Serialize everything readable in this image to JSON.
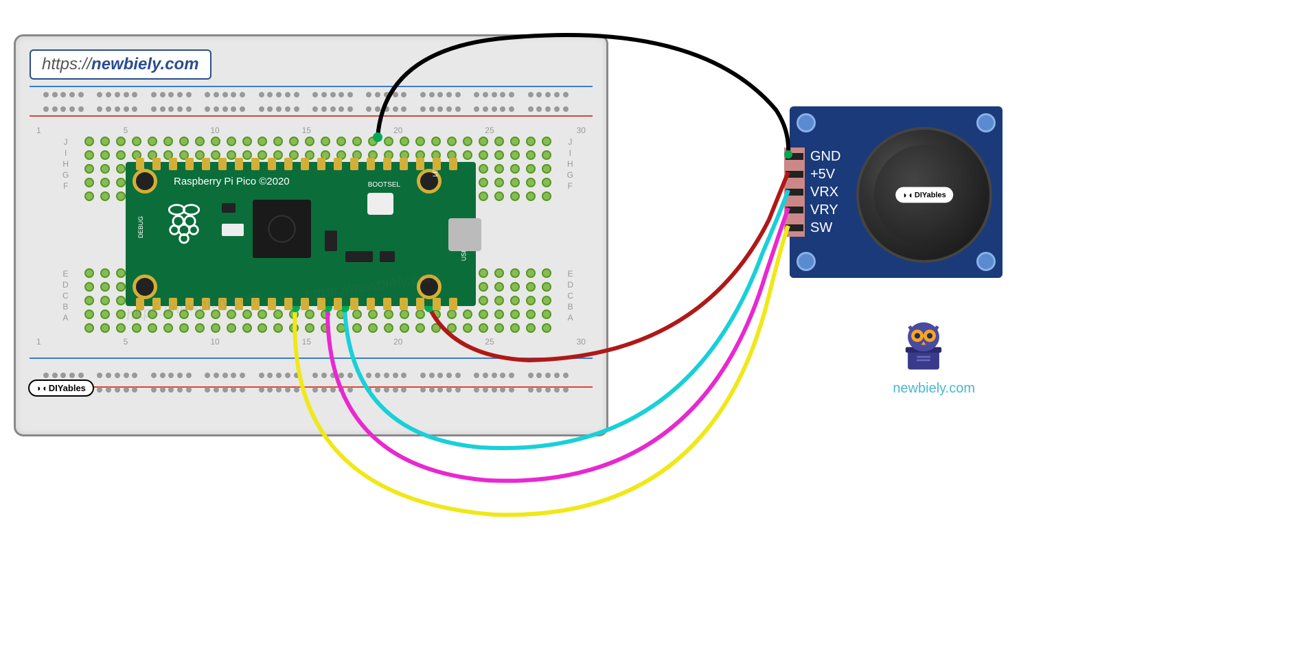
{
  "url": {
    "prefix": "https://",
    "domain": "newbiely.com"
  },
  "breadboard": {
    "rail_colors": {
      "blue": "#3b7cc9",
      "red": "#d43333"
    },
    "row_labels_top": [
      "J",
      "I",
      "H",
      "G",
      "F"
    ],
    "row_labels_bot": [
      "E",
      "D",
      "C",
      "B",
      "A"
    ],
    "col_numbers": [
      1,
      5,
      10,
      15,
      20,
      25,
      30
    ],
    "logo": "DIYables",
    "watermark": "https://newbiely.com"
  },
  "pico": {
    "title": "Raspberry Pi Pico ©2020",
    "bootsel": "BOOTSEL",
    "led": "LED",
    "usb": "USB",
    "debug": "DEBUG",
    "pcb_color": "#0b6e3a",
    "pad_color": "#d4af37",
    "chip_color": "#1a1a1a"
  },
  "joystick": {
    "pins": [
      "GND",
      "+5V",
      "VRX",
      "VRY",
      "SW"
    ],
    "pcb_color": "#1a3a7a",
    "logo": "DIYables"
  },
  "wires": {
    "gnd": {
      "color": "#000000",
      "from": "pico-gnd",
      "to": "joystick-gnd",
      "stroke_width": 6
    },
    "vcc": {
      "color": "#b01818",
      "from": "pico-vbus",
      "to": "joystick-5v",
      "stroke_width": 6
    },
    "vrx": {
      "color": "#18d0d8",
      "from": "pico-gp27",
      "to": "joystick-vrx",
      "stroke_width": 6
    },
    "vry": {
      "color": "#e828d0",
      "from": "pico-gp26",
      "to": "joystick-vry",
      "stroke_width": 6
    },
    "sw": {
      "color": "#f0e818",
      "from": "pico-gp22",
      "to": "joystick-sw",
      "stroke_width": 6
    }
  },
  "branding": {
    "owl_color": "#4a4a9a",
    "owl_glasses": "#f5a623",
    "site": "newbiely.com"
  }
}
